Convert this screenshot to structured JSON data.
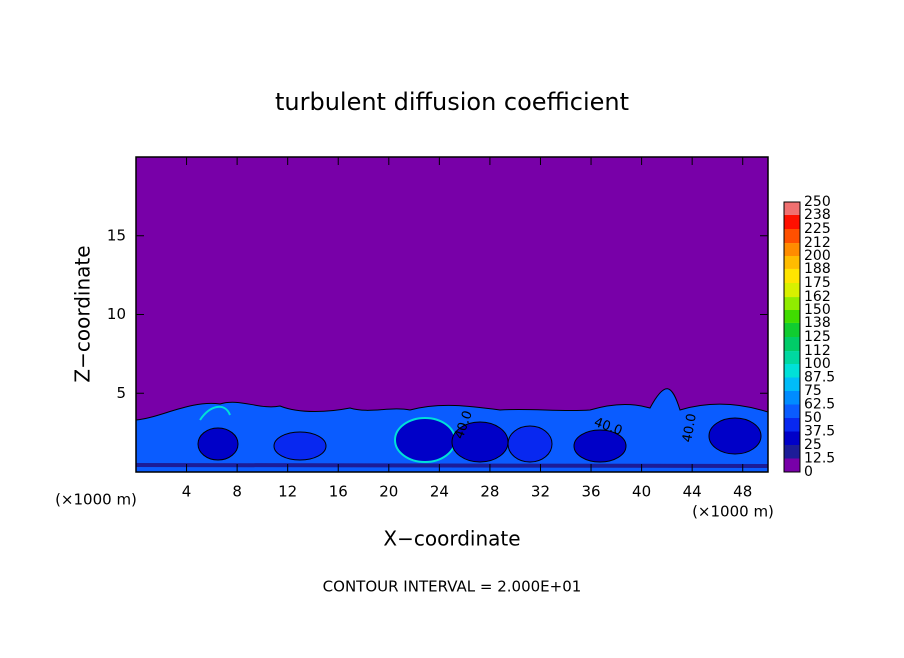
{
  "chart_data": {
    "type": "contour",
    "title": "turbulent diffusion coefficient",
    "xlabel": "X−coordinate",
    "ylabel": "Z−coordinate",
    "x_unit": "(×1000 m)",
    "y_unit": "(×1000 m)",
    "note": "CONTOUR INTERVAL = 2.000E+01",
    "xlim": [
      0,
      50
    ],
    "ylim": [
      0,
      20
    ],
    "xticks": [
      4,
      8,
      12,
      16,
      20,
      24,
      28,
      32,
      36,
      40,
      44,
      48
    ],
    "yticks": [
      5,
      10,
      15
    ],
    "contour_labels": [
      "40.0",
      "40.0",
      "40.0"
    ],
    "colorbar": {
      "levels": [
        0,
        12.5,
        25,
        37.5,
        50,
        62.5,
        75,
        87.5,
        100,
        112,
        125,
        138,
        150,
        162,
        175,
        188,
        200,
        212,
        225,
        238,
        250
      ],
      "colors": [
        "#7800a8",
        "#1c1c98",
        "#0000c8",
        "#0828f0",
        "#0a5cff",
        "#008cff",
        "#00bcf8",
        "#00e0d8",
        "#00d8a0",
        "#00cc68",
        "#10cc30",
        "#40dc00",
        "#90ec00",
        "#d8f000",
        "#ffe400",
        "#ffbc00",
        "#ff8c00",
        "#ff5000",
        "#ff1000",
        "#f07070"
      ]
    }
  }
}
